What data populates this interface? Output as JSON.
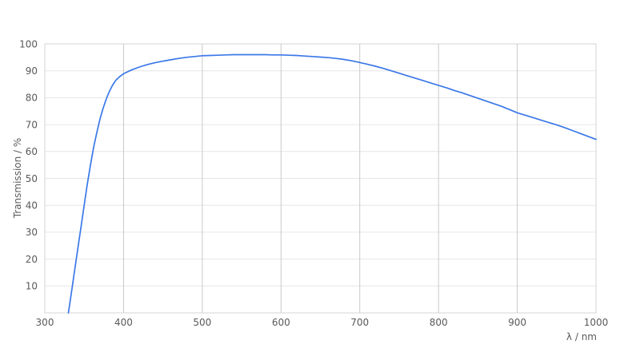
{
  "chart_data": {
    "type": "line",
    "title": "",
    "xlabel": "λ / nm",
    "ylabel": "Transmission / %",
    "xlim": [
      300,
      1000
    ],
    "ylim": [
      0,
      100
    ],
    "x_ticks": [
      300,
      400,
      500,
      600,
      700,
      800,
      900,
      1000
    ],
    "y_ticks": [
      10,
      20,
      30,
      40,
      50,
      60,
      70,
      80,
      90,
      100
    ],
    "grid": "on",
    "legend": "none",
    "colors": {
      "line": "#3b78e8",
      "hgrid": "#e6e6e6",
      "vgrid": "#c9c9c9",
      "frame": "#d6d6d6",
      "text": "#595959",
      "background": "#ffffff"
    },
    "series": [
      {
        "name": "Transmission",
        "points": [
          [
            330,
            0
          ],
          [
            334,
            8
          ],
          [
            338,
            16
          ],
          [
            342,
            24
          ],
          [
            346,
            32
          ],
          [
            350,
            40
          ],
          [
            354,
            48
          ],
          [
            358,
            55
          ],
          [
            362,
            61.5
          ],
          [
            366,
            67
          ],
          [
            370,
            72
          ],
          [
            374,
            76
          ],
          [
            378,
            79.5
          ],
          [
            382,
            82.3
          ],
          [
            386,
            84.6
          ],
          [
            390,
            86.4
          ],
          [
            395,
            87.8
          ],
          [
            400,
            88.9
          ],
          [
            410,
            90.3
          ],
          [
            420,
            91.4
          ],
          [
            430,
            92.3
          ],
          [
            440,
            93.0
          ],
          [
            450,
            93.6
          ],
          [
            460,
            94.1
          ],
          [
            470,
            94.6
          ],
          [
            480,
            95.0
          ],
          [
            490,
            95.3
          ],
          [
            500,
            95.6
          ],
          [
            510,
            95.7
          ],
          [
            520,
            95.8
          ],
          [
            530,
            95.9
          ],
          [
            540,
            96.0
          ],
          [
            550,
            96.0
          ],
          [
            560,
            96.0
          ],
          [
            570,
            96.0
          ],
          [
            580,
            96.0
          ],
          [
            590,
            95.9
          ],
          [
            600,
            95.9
          ],
          [
            610,
            95.8
          ],
          [
            620,
            95.7
          ],
          [
            630,
            95.5
          ],
          [
            640,
            95.3
          ],
          [
            650,
            95.1
          ],
          [
            660,
            94.9
          ],
          [
            670,
            94.6
          ],
          [
            680,
            94.2
          ],
          [
            690,
            93.7
          ],
          [
            700,
            93.1
          ],
          [
            710,
            92.4
          ],
          [
            720,
            91.7
          ],
          [
            730,
            90.9
          ],
          [
            740,
            90.0
          ],
          [
            750,
            89.1
          ],
          [
            760,
            88.2
          ],
          [
            770,
            87.3
          ],
          [
            780,
            86.4
          ],
          [
            790,
            85.5
          ],
          [
            800,
            84.6
          ],
          [
            810,
            83.7
          ],
          [
            820,
            82.7
          ],
          [
            830,
            81.8
          ],
          [
            840,
            80.8
          ],
          [
            850,
            79.8
          ],
          [
            860,
            78.8
          ],
          [
            870,
            77.8
          ],
          [
            880,
            76.8
          ],
          [
            890,
            75.6
          ],
          [
            900,
            74.4
          ],
          [
            910,
            73.5
          ],
          [
            920,
            72.6
          ],
          [
            930,
            71.7
          ],
          [
            940,
            70.8
          ],
          [
            950,
            69.9
          ],
          [
            960,
            68.9
          ],
          [
            970,
            67.8
          ],
          [
            980,
            66.7
          ],
          [
            990,
            65.6
          ],
          [
            1000,
            64.5
          ]
        ]
      }
    ]
  }
}
